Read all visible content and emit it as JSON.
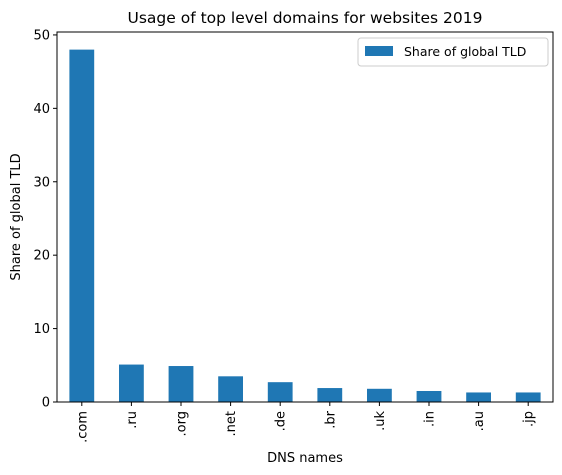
{
  "chart_data": {
    "type": "bar",
    "title": "Usage of top level domains for websites 2019",
    "xlabel": "DNS names",
    "ylabel": "Share of global TLD",
    "categories": [
      ".com",
      ".ru",
      ".org",
      ".net",
      ".de",
      ".br",
      ".uk",
      ".in",
      ".au",
      ".jp"
    ],
    "series": [
      {
        "name": "Share of global TLD",
        "values": [
          48.0,
          5.1,
          4.9,
          3.5,
          2.7,
          1.9,
          1.8,
          1.5,
          1.3,
          1.3
        ],
        "color": "#1f77b4"
      }
    ],
    "ylim": [
      0,
      50.4
    ],
    "yticks": [
      0,
      10,
      20,
      30,
      40,
      50
    ],
    "grid": false,
    "legend_position": "top-right"
  }
}
